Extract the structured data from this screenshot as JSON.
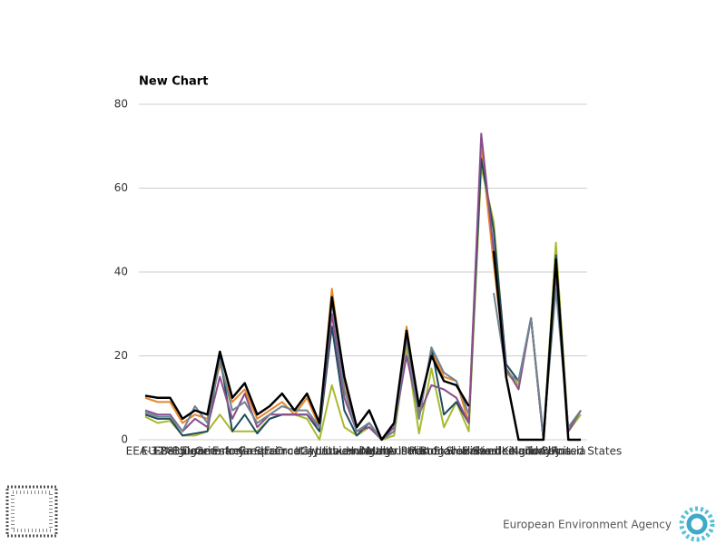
{
  "chart_data": {
    "type": "line",
    "title": "New Chart",
    "categories": [
      "EEA-32",
      "EU-28",
      "EU-15",
      "Belgium",
      "Bulgaria",
      "Denmark",
      "Germany",
      "Estonia",
      "Ireland",
      "Greece",
      "Spain",
      "France",
      "Croatia",
      "Italy",
      "Cyprus",
      "Latvia",
      "Lithuania",
      "Luxembourg",
      "Hungary",
      "Malta",
      "Netherlands",
      "Austria",
      "Poland",
      "Portugal",
      "Romania",
      "Slovenia",
      "Slovakia",
      "Finland",
      "Sweden",
      "United Kingdom",
      "Iceland",
      "Norway",
      "Turkey",
      "China",
      "Russia",
      "United States"
    ],
    "series": [
      {
        "color": "#e8872a",
        "values": [
          10,
          9,
          9,
          4,
          6,
          5,
          18,
          9,
          12,
          5,
          7,
          9,
          6,
          10,
          3,
          36,
          14,
          2,
          4,
          0,
          3,
          27,
          7,
          21,
          15,
          14,
          4,
          70,
          42,
          16,
          13,
          29,
          0,
          40,
          2,
          7
        ]
      },
      {
        "color": "#a9b92e",
        "values": [
          5.5,
          4,
          4.5,
          1,
          1,
          2,
          6,
          2,
          2,
          2,
          5,
          6,
          6,
          5,
          0,
          13,
          3,
          1,
          3,
          0,
          1,
          22,
          1.5,
          17,
          3,
          9,
          2,
          65,
          52,
          17,
          13,
          29,
          0,
          47,
          2,
          6
        ]
      },
      {
        "color": "#1d4b5e",
        "values": [
          6,
          5,
          5,
          1,
          1.5,
          2,
          20,
          2,
          6,
          1.5,
          5,
          6,
          6,
          6,
          2,
          27,
          7,
          1,
          4,
          0,
          2,
          25,
          5,
          22,
          6,
          9,
          4,
          67,
          50,
          18,
          14,
          29,
          0,
          44,
          2,
          7
        ]
      },
      {
        "color": "#8b4e8c",
        "values": [
          7,
          6,
          6,
          2,
          5,
          3,
          15,
          5,
          11,
          3,
          6,
          6,
          6,
          6,
          3,
          30,
          10,
          2,
          3,
          0,
          3,
          20,
          6,
          13,
          12,
          10,
          4,
          73,
          45,
          17,
          12,
          29,
          0,
          40,
          2,
          7
        ]
      },
      {
        "color": "#6f8593",
        "values": [
          6.5,
          5.5,
          5.5,
          2,
          8,
          4,
          19,
          7,
          9,
          4,
          6,
          8,
          7,
          7,
          3,
          33,
          12,
          2,
          4,
          0,
          2,
          24,
          5,
          22,
          16,
          14,
          6,
          null,
          35,
          16,
          14,
          29,
          1,
          36,
          3,
          7
        ]
      },
      {
        "color": "#000000",
        "values": [
          10.5,
          10,
          10,
          5,
          7,
          6,
          21,
          10,
          13.5,
          6,
          8,
          11,
          7,
          11,
          4,
          34,
          15,
          3,
          7,
          0,
          4,
          26,
          8,
          20,
          14,
          13,
          8,
          null,
          45,
          15,
          0,
          0,
          0,
          43,
          0,
          0
        ]
      }
    ],
    "ylim": [
      0,
      80
    ],
    "yticks": [
      0,
      20,
      40,
      60,
      80
    ],
    "grid": true
  },
  "footer": {
    "agency": "European Environment Agency"
  }
}
